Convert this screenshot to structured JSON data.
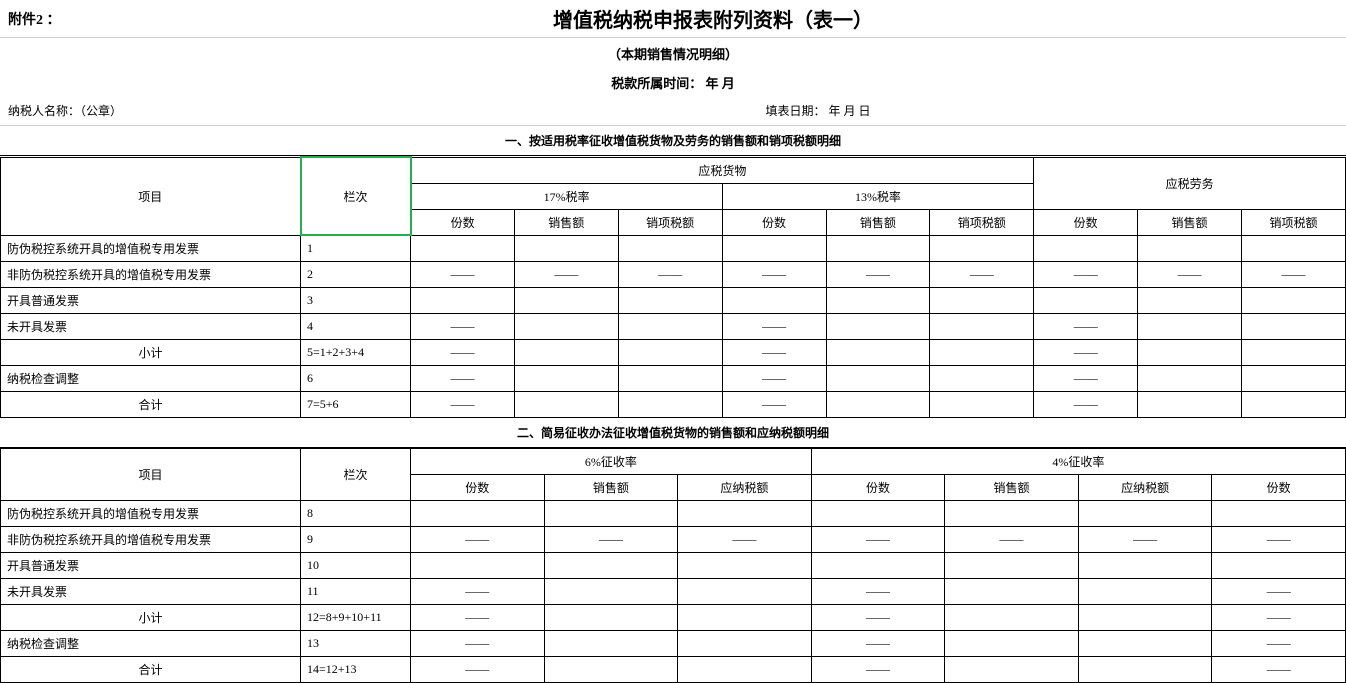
{
  "header": {
    "attachment_label": "附件2 ：",
    "title": "增值税纳税申报表附列资料（表一）",
    "subtitle": "（本期销售情况明细）",
    "period_label": "税款所属时间：   年      月",
    "taxpayer_label": "纳税人名称：（公章）",
    "fill_date_label": "填表日期：   年   月  日"
  },
  "section1": {
    "title": "一、按适用税率征收增值税货物及劳务的销售额和销项税额明细",
    "col_item": "项目",
    "col_lan": "栏次",
    "group_goods": "应税货物",
    "group_service": "应税劳务",
    "rate17": "17%税率",
    "rate13": "13%税率",
    "sub_count": "份数",
    "sub_sales": "销售额",
    "sub_tax": "销项税额",
    "rows": [
      {
        "label": "防伪税控系统开具的增值税专用发票",
        "lan": "1",
        "dash": false
      },
      {
        "label": "非防伪税控系统开具的增值税专用发票",
        "lan": "2",
        "dash": true
      },
      {
        "label": "开具普通发票",
        "lan": "3",
        "dash": false
      },
      {
        "label": "未开具发票",
        "lan": "4",
        "dash": true,
        "dash_first_only": true
      },
      {
        "label": "小计",
        "lan": "5=1+2+3+4",
        "dash": true,
        "dash_first_only": true,
        "center": true
      },
      {
        "label": "纳税检查调整",
        "lan": "6",
        "dash": true,
        "dash_first_only": true
      },
      {
        "label": "合计",
        "lan": "7=5+6",
        "dash": true,
        "dash_first_only": true,
        "center": true
      }
    ]
  },
  "section2": {
    "title": "二、简易征收办法征收增值税货物的销售额和应纳税额明细",
    "col_item": "项目",
    "col_lan": "栏次",
    "rate6": "6%征收率",
    "rate4": "4%征收率",
    "sub_count": "份数",
    "sub_sales": "销售额",
    "sub_tax": "应纳税额",
    "rows": [
      {
        "label": "防伪税控系统开具的增值税专用发票",
        "lan": "8",
        "dash": false
      },
      {
        "label": "非防伪税控系统开具的增值税专用发票",
        "lan": "9",
        "dash": true
      },
      {
        "label": "开具普通发票",
        "lan": "10",
        "dash": false
      },
      {
        "label": "未开具发票",
        "lan": "11",
        "dash": true,
        "dash_first_only": true
      },
      {
        "label": "小计",
        "lan": "12=8+9+10+11",
        "dash": true,
        "dash_first_only": true,
        "center": true
      },
      {
        "label": "纳税检查调整",
        "lan": "13",
        "dash": true,
        "dash_first_only": true
      },
      {
        "label": "合计",
        "lan": "14=12+13",
        "dash": true,
        "dash_first_only": true,
        "center": true
      }
    ]
  },
  "dash": "——"
}
